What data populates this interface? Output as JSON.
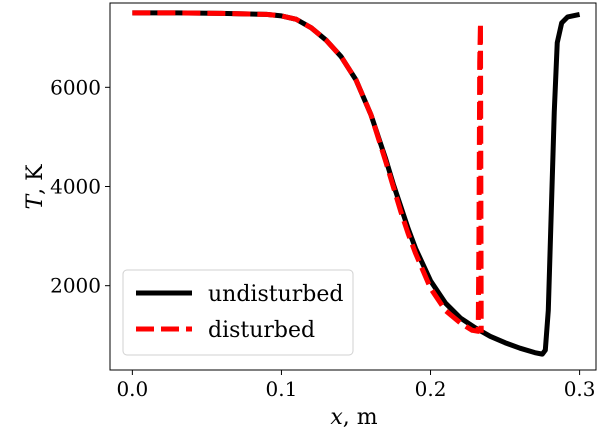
{
  "chart_data": {
    "type": "line",
    "xlabel_var": "x",
    "xlabel_unit": ", m",
    "ylabel_var": "T",
    "ylabel_unit": ", K",
    "xlim": [
      -0.015,
      0.311
    ],
    "ylim": [
      300,
      7700
    ],
    "xticks": [
      0.0,
      0.1,
      0.2,
      0.3
    ],
    "xtick_labels": [
      "0.0",
      "0.1",
      "0.2",
      "0.3"
    ],
    "yticks": [
      2000,
      4000,
      6000
    ],
    "ytick_labels": [
      "2000",
      "4000",
      "6000"
    ],
    "grid": false,
    "legend_position": "lower-left",
    "series": [
      {
        "name": "undisturbed",
        "color": "#000000",
        "style": "solid",
        "x": [
          0.0,
          0.03,
          0.06,
          0.09,
          0.1,
          0.11,
          0.12,
          0.13,
          0.14,
          0.15,
          0.16,
          0.17,
          0.175,
          0.18,
          0.185,
          0.19,
          0.2,
          0.21,
          0.22,
          0.23,
          0.24,
          0.25,
          0.26,
          0.27,
          0.275,
          0.277,
          0.279,
          0.281,
          0.283,
          0.285,
          0.288,
          0.292,
          0.3
        ],
        "y": [
          7500,
          7500,
          7490,
          7470,
          7440,
          7370,
          7200,
          6950,
          6620,
          6150,
          5450,
          4550,
          4050,
          3600,
          3150,
          2750,
          2100,
          1650,
          1350,
          1150,
          980,
          850,
          740,
          650,
          620,
          700,
          1500,
          3500,
          5500,
          6900,
          7300,
          7420,
          7470
        ]
      },
      {
        "name": "disturbed",
        "color": "#ff0000",
        "style": "dashed",
        "x": [
          0.0,
          0.03,
          0.06,
          0.09,
          0.1,
          0.11,
          0.12,
          0.13,
          0.14,
          0.15,
          0.16,
          0.17,
          0.175,
          0.18,
          0.185,
          0.19,
          0.2,
          0.21,
          0.22,
          0.228,
          0.232,
          0.2325,
          0.233,
          0.2335,
          0.234
        ],
        "y": [
          7500,
          7500,
          7490,
          7470,
          7440,
          7370,
          7200,
          6950,
          6620,
          6150,
          5450,
          4500,
          4000,
          3500,
          3050,
          2650,
          1950,
          1500,
          1250,
          1100,
          1080,
          3000,
          6500,
          7300,
          1050
        ]
      }
    ]
  }
}
